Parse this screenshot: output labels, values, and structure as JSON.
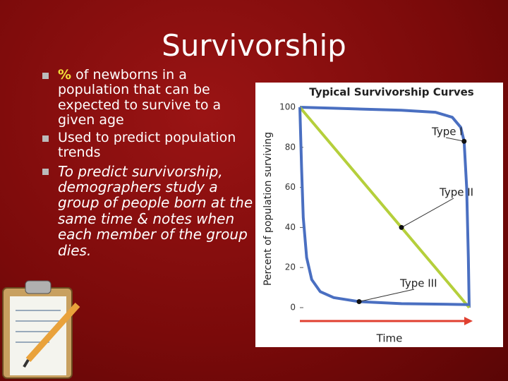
{
  "slide": {
    "title": "Survivorship",
    "bullets": [
      {
        "highlight": "%",
        "text": "of newborns in a population that can be expected to survive to a given age"
      },
      {
        "text": "Used to predict population trends"
      },
      {
        "text": "To predict survivorship, demographers study a group of people born at the same time & notes when each member of the group dies."
      }
    ]
  },
  "chart_data": {
    "type": "line",
    "title": "Typical Survivorship Curves",
    "y_label": "Percent of population surviving",
    "x_label": "Time",
    "xlim": [
      0,
      100
    ],
    "ylim": [
      0,
      100
    ],
    "yticks": [
      0,
      20,
      40,
      60,
      80,
      100
    ],
    "series": [
      {
        "name": "Type I",
        "color": "#4a6fc1",
        "x": [
          0,
          20,
          40,
          60,
          80,
          90,
          95,
          97,
          98.5,
          99.5,
          100
        ],
        "values": [
          100,
          99.5,
          99,
          98.5,
          97.5,
          95,
          90,
          83,
          60,
          25,
          0
        ]
      },
      {
        "name": "Type II",
        "color": "#b5cf3b",
        "x": [
          0,
          60,
          100
        ],
        "values": [
          100,
          40,
          0
        ]
      },
      {
        "name": "Type III",
        "color": "#4a6fc1",
        "x": [
          0,
          1,
          2,
          4,
          7,
          12,
          20,
          35,
          60,
          100
        ],
        "values": [
          100,
          70,
          45,
          25,
          14,
          8,
          5,
          3,
          2,
          1.5
        ]
      }
    ]
  }
}
